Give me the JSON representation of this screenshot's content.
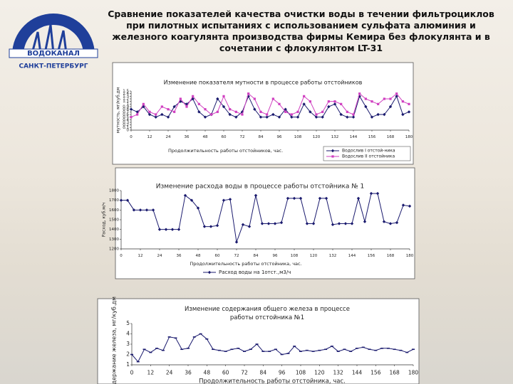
{
  "logo": {
    "name": "ВОДОКАНАЛ",
    "city": "САНКТ-ПЕТЕРБУРГ"
  },
  "title": "Сравнение показателей качества очистки воды в течении фильтроциклов при пилотных испытаниях с использованием сульфата алюминия и железного коагулянта производства фирмы Кемира без флокулянта и в сочетании с флокулянтом LT-31",
  "chart_data": [
    {
      "type": "line",
      "title": "Изменение показателя мутности в процессе работы отстойников",
      "x_label": "Продолжительность работы отстойников, час.",
      "y_label": "мутность, мг/куб.дм",
      "x": [
        0,
        4,
        8,
        12,
        16,
        20,
        24,
        28,
        32,
        36,
        40,
        44,
        48,
        52,
        56,
        60,
        64,
        68,
        72,
        76,
        80,
        84,
        88,
        92,
        96,
        100,
        104,
        108,
        112,
        116,
        120,
        124,
        128,
        132,
        136,
        140,
        144,
        148,
        152,
        156,
        160,
        164,
        168,
        172,
        176,
        180
      ],
      "xlim": [
        0,
        180
      ],
      "xticks": [
        0,
        12,
        24,
        36,
        48,
        60,
        72,
        84,
        96,
        108,
        120,
        132,
        144,
        156,
        168,
        180
      ],
      "ylim": [
        0,
        1.5
      ],
      "yticks": [
        0,
        0.1,
        0.2,
        0.3,
        0.4,
        0.5,
        0.6,
        0.7,
        0.8,
        0.9,
        1,
        1.1,
        1.2,
        1.3,
        1.4,
        1.5
      ],
      "grid": false,
      "legend": "bottom-right",
      "series": [
        {
          "name": "Водослив I отстой-ника",
          "color": "#1a1a6e",
          "marker": "diamond",
          "values": [
            0.8,
            0.7,
            0.9,
            0.6,
            0.5,
            0.6,
            0.5,
            0.9,
            1.1,
            1.0,
            1.2,
            0.7,
            0.5,
            0.6,
            1.2,
            0.9,
            0.6,
            0.5,
            0.7,
            1.3,
            0.8,
            0.5,
            0.5,
            0.6,
            0.5,
            0.8,
            0.5,
            0.5,
            1.0,
            0.7,
            0.5,
            0.5,
            0.9,
            1.0,
            0.6,
            0.5,
            0.5,
            1.3,
            0.9,
            0.5,
            0.6,
            0.6,
            0.9,
            1.3,
            0.6,
            0.7
          ]
        },
        {
          "name": "Водослив II отстойника",
          "color": "#d040c0",
          "marker": "square",
          "values": [
            0.5,
            0.6,
            1.0,
            0.7,
            0.6,
            0.9,
            0.8,
            0.7,
            1.2,
            0.9,
            1.3,
            1.0,
            0.8,
            0.6,
            0.7,
            1.3,
            0.8,
            0.7,
            0.6,
            1.4,
            1.2,
            0.7,
            0.6,
            1.2,
            1.0,
            0.7,
            0.6,
            0.7,
            1.3,
            1.1,
            0.6,
            0.7,
            1.1,
            1.1,
            1.0,
            0.7,
            0.6,
            1.4,
            1.2,
            1.1,
            1.0,
            1.2,
            1.2,
            1.4,
            1.1,
            1.0
          ]
        }
      ]
    },
    {
      "type": "line",
      "title": "Изменение расхода воды в процессе работы отстойника № 1",
      "x_label": "Продолжительность работы отстойника, час.",
      "y_label": "Расход, куб.м/ч",
      "x": [
        0,
        4,
        8,
        12,
        16,
        20,
        24,
        28,
        32,
        36,
        40,
        44,
        48,
        52,
        56,
        60,
        64,
        68,
        72,
        76,
        80,
        84,
        88,
        92,
        96,
        100,
        104,
        108,
        112,
        116,
        120,
        124,
        128,
        132,
        136,
        140,
        144,
        148,
        152,
        156,
        160,
        164,
        168,
        172,
        176,
        180
      ],
      "xlim": [
        0,
        180
      ],
      "xticks": [
        0,
        12,
        24,
        36,
        48,
        60,
        72,
        84,
        96,
        108,
        120,
        132,
        144,
        156,
        168,
        180
      ],
      "ylim": [
        1200,
        1800
      ],
      "yticks": [
        1200,
        1300,
        1400,
        1500,
        1600,
        1700,
        1800
      ],
      "grid": false,
      "legend": "bottom",
      "series": [
        {
          "name": "Расход воды на 1отст.,м3/ч",
          "color": "#1a1a6e",
          "marker": "diamond",
          "values": [
            1700,
            1700,
            1600,
            1600,
            1600,
            1600,
            1400,
            1400,
            1400,
            1400,
            1750,
            1700,
            1620,
            1430,
            1430,
            1440,
            1700,
            1710,
            1270,
            1450,
            1430,
            1750,
            1460,
            1460,
            1460,
            1470,
            1720,
            1720,
            1720,
            1460,
            1460,
            1720,
            1720,
            1450,
            1460,
            1460,
            1460,
            1720,
            1480,
            1770,
            1770,
            1480,
            1460,
            1470,
            1650,
            1640
          ]
        }
      ]
    },
    {
      "type": "line",
      "title": "Изменение содержания общего железа в процессе работы отстойника №1",
      "x_label": "Продолжительность работы отстойника, час.",
      "y_label": "Содержание железа, мг/куб.дм",
      "x": [
        0,
        4,
        8,
        12,
        16,
        20,
        24,
        28,
        32,
        36,
        40,
        44,
        48,
        52,
        56,
        60,
        64,
        68,
        72,
        76,
        80,
        84,
        88,
        92,
        96,
        100,
        104,
        108,
        112,
        116,
        120,
        124,
        128,
        132,
        136,
        140,
        144,
        148,
        152,
        156,
        160,
        164,
        168,
        172,
        176,
        180
      ],
      "xlim": [
        0,
        180
      ],
      "xticks": [
        0,
        12,
        24,
        36,
        48,
        60,
        72,
        84,
        96,
        108,
        120,
        132,
        144,
        156,
        168,
        180
      ],
      "ylim": [
        1,
        5
      ],
      "yticks": [
        1,
        2,
        3,
        4,
        5
      ],
      "grid": false,
      "series": [
        {
          "color": "#1a1a6e",
          "marker": "dash",
          "values": [
            2.0,
            1.3,
            2.5,
            2.2,
            2.6,
            2.4,
            3.7,
            3.6,
            2.5,
            2.6,
            3.7,
            4.0,
            3.5,
            2.5,
            2.4,
            2.3,
            2.5,
            2.6,
            2.3,
            2.5,
            3.0,
            2.3,
            2.3,
            2.5,
            2.0,
            2.1,
            2.8,
            2.3,
            2.4,
            2.3,
            2.4,
            2.5,
            2.8,
            2.3,
            2.5,
            2.3,
            2.6,
            2.7,
            2.5,
            2.4,
            2.6,
            2.6,
            2.5,
            2.4,
            2.2,
            2.5
          ]
        }
      ]
    }
  ]
}
